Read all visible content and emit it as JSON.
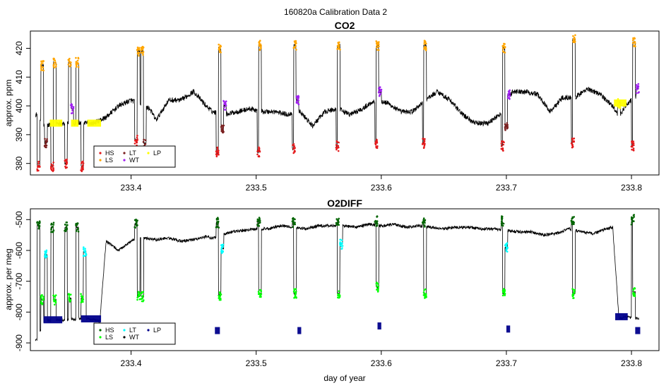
{
  "figure": {
    "title": "160820a   Calibration Data 2"
  },
  "chart_data": [
    {
      "type": "line",
      "title": "CO2",
      "xlabel": "",
      "ylabel": "approx. ppm",
      "xlim": [
        233.3195,
        233.822
      ],
      "ylim": [
        376,
        426
      ],
      "xticks": [
        233.4,
        233.5,
        233.6,
        233.7,
        233.8
      ],
      "yticks": [
        380,
        390,
        400,
        410,
        420
      ],
      "base_series": {
        "name": "ambient",
        "color": "#000000",
        "x": [
          233.325,
          233.33,
          233.34,
          233.35,
          233.36,
          233.37,
          233.38,
          233.39,
          233.4,
          233.405,
          233.41,
          233.415,
          233.42,
          233.43,
          233.44,
          233.45,
          233.46,
          233.465,
          233.475,
          233.485,
          233.495,
          233.505,
          233.515,
          233.525,
          233.535,
          233.545,
          233.555,
          233.565,
          233.575,
          233.585,
          233.595,
          233.605,
          233.615,
          233.625,
          233.635,
          233.645,
          233.655,
          233.665,
          233.675,
          233.685,
          233.695,
          233.705,
          233.715,
          233.725,
          233.735,
          233.745,
          233.755,
          233.765,
          233.775,
          233.785,
          233.79,
          233.795,
          233.8,
          233.805
        ],
        "y": [
          397,
          393,
          394,
          394,
          394,
          394,
          396,
          400,
          402,
          401,
          400,
          399,
          395,
          402,
          402,
          405,
          400,
          398,
          397,
          398,
          399,
          398,
          398,
          397,
          398,
          393,
          398,
          399,
          397,
          399,
          402,
          401,
          398,
          398,
          402,
          405,
          402,
          397,
          394,
          394,
          397,
          405,
          405,
          404,
          398,
          403,
          403,
          406,
          404,
          400,
          396,
          400,
          402,
          404
        ]
      },
      "calibration_events": [
        {
          "x": 233.326,
          "type": "HS",
          "value": 379
        },
        {
          "x": 233.329,
          "type": "LS",
          "value": 414
        },
        {
          "x": 233.332,
          "type": "LT",
          "value": 387
        },
        {
          "x": 233.337,
          "type": "HS",
          "value": 379
        },
        {
          "x": 233.339,
          "type": "LS",
          "value": 415
        },
        {
          "x": 233.348,
          "type": "HS",
          "value": 380
        },
        {
          "x": 233.351,
          "type": "LS",
          "value": 415
        },
        {
          "x": 233.353,
          "type": "WT",
          "value": 399
        },
        {
          "x": 233.357,
          "type": "LS",
          "value": 415
        },
        {
          "x": 233.361,
          "type": "HS",
          "value": 379
        },
        {
          "x": 233.404,
          "type": "HS",
          "value": 388
        },
        {
          "x": 233.406,
          "type": "LS",
          "value": 419
        },
        {
          "x": 233.409,
          "type": "LS",
          "value": 419
        },
        {
          "x": 233.411,
          "type": "LT",
          "value": 387
        },
        {
          "x": 233.469,
          "type": "HS",
          "value": 384
        },
        {
          "x": 233.471,
          "type": "LS",
          "value": 420
        },
        {
          "x": 233.473,
          "type": "LT",
          "value": 392
        },
        {
          "x": 233.475,
          "type": "WT",
          "value": 400
        },
        {
          "x": 233.502,
          "type": "HS",
          "value": 384
        },
        {
          "x": 233.503,
          "type": "LS",
          "value": 421
        },
        {
          "x": 233.53,
          "type": "HS",
          "value": 385
        },
        {
          "x": 233.531,
          "type": "LS",
          "value": 421
        },
        {
          "x": 233.533,
          "type": "WT",
          "value": 402
        },
        {
          "x": 233.565,
          "type": "HS",
          "value": 386
        },
        {
          "x": 233.566,
          "type": "LS",
          "value": 421
        },
        {
          "x": 233.596,
          "type": "HS",
          "value": 387
        },
        {
          "x": 233.597,
          "type": "LS",
          "value": 421
        },
        {
          "x": 233.599,
          "type": "WT",
          "value": 405
        },
        {
          "x": 233.634,
          "type": "HS",
          "value": 387
        },
        {
          "x": 233.635,
          "type": "LS",
          "value": 421
        },
        {
          "x": 233.697,
          "type": "HS",
          "value": 386
        },
        {
          "x": 233.698,
          "type": "LS",
          "value": 420
        },
        {
          "x": 233.7,
          "type": "LT",
          "value": 393
        },
        {
          "x": 233.702,
          "type": "WT",
          "value": 404
        },
        {
          "x": 233.753,
          "type": "HS",
          "value": 387
        },
        {
          "x": 233.754,
          "type": "LS",
          "value": 423
        },
        {
          "x": 233.79,
          "type": "LP",
          "value": 401
        },
        {
          "x": 233.801,
          "type": "HS",
          "value": 386
        },
        {
          "x": 233.802,
          "type": "LS",
          "value": 422
        },
        {
          "x": 233.805,
          "type": "WT",
          "value": 406
        }
      ],
      "lp_segments": [
        {
          "x_start": 233.335,
          "x_end": 233.345,
          "value": 394
        },
        {
          "x_start": 233.352,
          "x_end": 233.358,
          "value": 394
        },
        {
          "x_start": 233.365,
          "x_end": 233.376,
          "value": 394
        },
        {
          "x_start": 233.786,
          "x_end": 233.796,
          "value": 401
        }
      ],
      "legend": {
        "position": "bottom-left",
        "entries": [
          {
            "label": "HS",
            "color": "#e41a1c"
          },
          {
            "label": "LS",
            "color": "#ffa500"
          },
          {
            "label": "LT",
            "color": "#7b2020"
          },
          {
            "label": "WT",
            "color": "#a020f0"
          },
          {
            "label": "LP",
            "color": "#ffff00"
          }
        ]
      }
    },
    {
      "type": "line",
      "title": "O2DIFF",
      "xlabel": "day of year",
      "ylabel": "approx. per meg",
      "xlim": [
        233.3195,
        233.822
      ],
      "ylim": [
        -925,
        -465
      ],
      "xticks": [
        233.4,
        233.5,
        233.6,
        233.7,
        233.8
      ],
      "yticks": [
        -900,
        -800,
        -700,
        -600,
        -500
      ],
      "base_series": {
        "name": "ambient",
        "color": "#000000",
        "x": [
          233.325,
          233.33,
          233.34,
          233.35,
          233.36,
          233.37,
          233.375,
          233.38,
          233.39,
          233.4,
          233.405,
          233.41,
          233.42,
          233.43,
          233.44,
          233.45,
          233.46,
          233.465,
          233.48,
          233.49,
          233.5,
          233.51,
          233.52,
          233.53,
          233.54,
          233.55,
          233.56,
          233.57,
          233.58,
          233.59,
          233.6,
          233.61,
          233.62,
          233.63,
          233.64,
          233.65,
          233.66,
          233.67,
          233.68,
          233.69,
          233.7,
          233.71,
          233.72,
          233.73,
          233.74,
          233.75,
          233.76,
          233.77,
          233.78,
          233.785,
          233.79,
          233.795,
          233.8,
          233.805
        ],
        "y": [
          -890,
          -830,
          -825,
          -825,
          -820,
          -825,
          -830,
          -570,
          -600,
          -570,
          -560,
          -560,
          -565,
          -560,
          -570,
          -565,
          -555,
          -560,
          -540,
          -535,
          -530,
          -530,
          -520,
          -525,
          -530,
          -520,
          -520,
          -520,
          -525,
          -515,
          -520,
          -515,
          -525,
          -520,
          -525,
          -530,
          -525,
          -525,
          -530,
          -530,
          -535,
          -540,
          -540,
          -550,
          -545,
          -530,
          -540,
          -545,
          -530,
          -525,
          -820,
          -815,
          -820,
          -820
        ]
      },
      "calibration_events": [
        {
          "x": 233.326,
          "type": "HS",
          "value": -520
        },
        {
          "x": 233.329,
          "type": "LS",
          "value": -760
        },
        {
          "x": 233.332,
          "type": "LT",
          "value": -615
        },
        {
          "x": 233.337,
          "type": "HS",
          "value": -525
        },
        {
          "x": 233.339,
          "type": "LS",
          "value": -760
        },
        {
          "x": 233.348,
          "type": "HS",
          "value": -525
        },
        {
          "x": 233.351,
          "type": "LS",
          "value": -755
        },
        {
          "x": 233.357,
          "type": "HS",
          "value": -525
        },
        {
          "x": 233.361,
          "type": "LS",
          "value": -755
        },
        {
          "x": 233.363,
          "type": "LT",
          "value": -605
        },
        {
          "x": 233.404,
          "type": "HS",
          "value": -515
        },
        {
          "x": 233.406,
          "type": "LS",
          "value": -750
        },
        {
          "x": 233.409,
          "type": "LS",
          "value": -750
        },
        {
          "x": 233.469,
          "type": "HS",
          "value": -510
        },
        {
          "x": 233.471,
          "type": "LS",
          "value": -745
        },
        {
          "x": 233.473,
          "type": "LT",
          "value": -595
        },
        {
          "x": 233.502,
          "type": "HS",
          "value": -505
        },
        {
          "x": 233.503,
          "type": "LS",
          "value": -740
        },
        {
          "x": 233.53,
          "type": "HS",
          "value": -510
        },
        {
          "x": 233.531,
          "type": "LS",
          "value": -740
        },
        {
          "x": 233.565,
          "type": "HS",
          "value": -510
        },
        {
          "x": 233.566,
          "type": "LS",
          "value": -740
        },
        {
          "x": 233.568,
          "type": "LT",
          "value": -580
        },
        {
          "x": 233.596,
          "type": "HS",
          "value": -505
        },
        {
          "x": 233.597,
          "type": "LS",
          "value": -720
        },
        {
          "x": 233.634,
          "type": "HS",
          "value": -510
        },
        {
          "x": 233.635,
          "type": "LS",
          "value": -740
        },
        {
          "x": 233.697,
          "type": "HS",
          "value": -505
        },
        {
          "x": 233.698,
          "type": "LS",
          "value": -740
        },
        {
          "x": 233.7,
          "type": "LT",
          "value": -590
        },
        {
          "x": 233.753,
          "type": "HS",
          "value": -505
        },
        {
          "x": 233.754,
          "type": "LS",
          "value": -740
        },
        {
          "x": 233.801,
          "type": "HS",
          "value": -500
        },
        {
          "x": 233.802,
          "type": "LS",
          "value": -735
        }
      ],
      "lp_segments": [
        {
          "x_start": 233.33,
          "x_end": 233.345,
          "value": -825
        },
        {
          "x_start": 233.36,
          "x_end": 233.376,
          "value": -822
        },
        {
          "x_start": 233.787,
          "x_end": 233.797,
          "value": -815
        },
        {
          "x_start": 233.467,
          "x_end": 233.471,
          "value": -860
        },
        {
          "x_start": 233.533,
          "x_end": 233.536,
          "value": -860
        },
        {
          "x_start": 233.597,
          "x_end": 233.6,
          "value": -845
        },
        {
          "x_start": 233.7,
          "x_end": 233.703,
          "value": -855
        },
        {
          "x_start": 233.803,
          "x_end": 233.807,
          "value": -860
        }
      ],
      "legend": {
        "position": "bottom-left",
        "entries": [
          {
            "label": "HS",
            "color": "#006400"
          },
          {
            "label": "LS",
            "color": "#00ff00"
          },
          {
            "label": "LT",
            "color": "#00ffff"
          },
          {
            "label": "WT",
            "color": "#000000"
          },
          {
            "label": "LP",
            "color": "#00008b"
          }
        ]
      }
    }
  ]
}
